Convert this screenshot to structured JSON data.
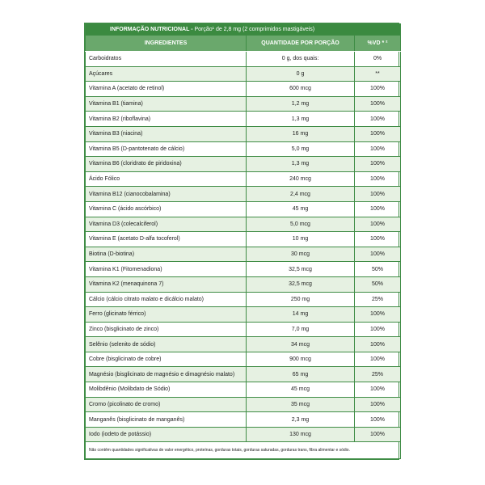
{
  "table": {
    "title": {
      "label": "INFORMAÇÃO NUTRICIONAL -",
      "serving": "Porção¹ de 2,8 mg (2 comprimidos mastigáveis)"
    },
    "headers": [
      "INGREDIENTES",
      "QUANTIDADE POR PORÇÃO",
      "%VD * ²"
    ],
    "rows": [
      [
        "Carboidratos",
        "0 g, dos quais:",
        "0%"
      ],
      [
        "Açúcares",
        "0 g",
        "**"
      ],
      [
        "Vitamina A (acetato de retinol)",
        "600 mcg",
        "100%"
      ],
      [
        "Vitamina B1 (tiamina)",
        "1,2 mg",
        "100%"
      ],
      [
        "Vitamina B2 (riboflavina)",
        "1,3 mg",
        "100%"
      ],
      [
        "Vitamina B3 (niacina)",
        "16 mg",
        "100%"
      ],
      [
        "Vitamina B5 (D-pantotenato de cálcio)",
        "5,0 mg",
        "100%"
      ],
      [
        "Vitamina B6 (cloridrato de piridoxina)",
        "1,3 mg",
        "100%"
      ],
      [
        "Ácido Fólico",
        "240 mcg",
        "100%"
      ],
      [
        "Vitamina B12 (cianocobalamina)",
        "2,4 mcg",
        "100%"
      ],
      [
        "Vitamina C (ácido ascórbico)",
        "45 mg",
        "100%"
      ],
      [
        "Vitamina D3 (colecalciferol)",
        "5,0 mcg",
        "100%"
      ],
      [
        "Vitamina E (acetato D-alfa tocoferol)",
        "10 mg",
        "100%"
      ],
      [
        "Biotina (D-biotina)",
        "30 mcg",
        "100%"
      ],
      [
        "Vitamina K1 (Fitomenadiona)",
        "32,5 mcg",
        "50%"
      ],
      [
        "Vitamina K2 (menaquinona 7)",
        "32,5 mcg",
        "50%"
      ],
      [
        "Cálcio (cálcio citrato malato e dicálcio malato)",
        "250 mg",
        "25%"
      ],
      [
        "Ferro (glicinato férrico)",
        "14 mg",
        "100%"
      ],
      [
        "Zinco (bisglicinato de zinco)",
        "7,0 mg",
        "100%"
      ],
      [
        "Selênio (selenito de sódio)",
        "34 mcg",
        "100%"
      ],
      [
        "Cobre (bisglicinato de cobre)",
        "900 mcg",
        "100%"
      ],
      [
        "Magnésio (bisglicinato de magnésio e dimagnésio malato)",
        "65 mg",
        "25%"
      ],
      [
        "Molibdênio (Molibdato de Sódio)",
        "45 mcg",
        "100%"
      ],
      [
        "Cromo (picolinato de cromo)",
        "35 mcg",
        "100%"
      ],
      [
        "Manganês (bisglicinato de manganês)",
        "2,3 mg",
        "100%"
      ],
      [
        "Iodo (iodeto de potássio)",
        "130 mcg",
        "100%"
      ]
    ],
    "note": "Não contêm quantidades significativas de valor energético, proteínas, gorduras totais, gorduras saturadas, gorduras trans, fibra alimentar e sódio."
  }
}
